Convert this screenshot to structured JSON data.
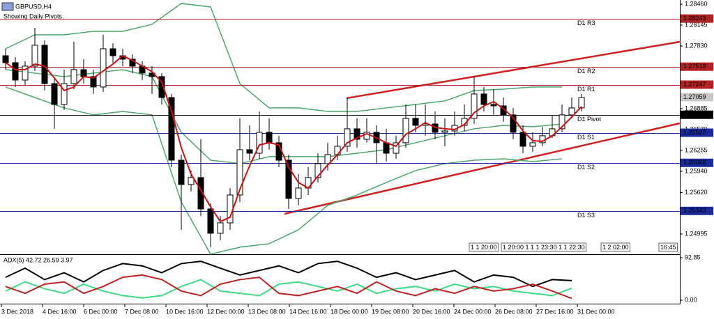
{
  "header": {
    "symbol": "GBPUSD,H4",
    "note": "Showing Daily Pivots."
  },
  "chart_data": [
    {
      "type": "candlestick",
      "ylim": [
        1.2469,
        1.28523
      ],
      "yticks": [
        {
          "value": 1.2846,
          "label": "1.28460"
        },
        1.28145,
        {
          "value": 1.2783,
          "label": "1.27830"
        },
        1.26885,
        {
          "value": 1.2657,
          "label": "1.26570"
        },
        1.26255,
        {
          "value": 1.2594,
          "label": "1.25940"
        },
        {
          "value": 1.2562,
          "label": "1.25620"
        },
        1.24995
      ],
      "open": [
        1.27683,
        1.27578,
        1.27316,
        1.27526,
        1.27841,
        1.27263,
        1.26948,
        1.27263,
        1.27473,
        1.27368,
        1.27211,
        1.27788,
        1.27683,
        1.27631,
        1.27526,
        1.27421,
        1.27368,
        1.27053,
        1.26108,
        1.25741,
        1.25846,
        1.25373,
        1.25006,
        1.25163,
        1.25583,
        1.26266,
        1.26213,
        1.26528,
        1.26371,
        1.26108,
        1.25531,
        1.25688,
        1.25846,
        1.26056,
        1.26192,
        1.26318,
        1.26581,
        1.26423,
        1.26528,
        1.26371,
        1.26213,
        1.26371,
        1.26738,
        1.26633,
        1.26654,
        1.26528,
        1.26549,
        1.26633,
        1.26738,
        1.27106,
        1.26948,
        1.26927,
        1.26791,
        1.26528,
        1.26318,
        1.26371,
        1.26476,
        1.26581,
        1.26791,
        1.26896
      ],
      "high": [
        1.27788,
        1.27662,
        1.27599,
        1.28103,
        1.27914,
        1.27347,
        1.27473,
        1.27893,
        1.27631,
        1.27473,
        1.27998,
        1.27872,
        1.27788,
        1.27704,
        1.27599,
        1.27526,
        1.27421,
        1.27106,
        1.26192,
        1.25951,
        1.26423,
        1.25457,
        1.25268,
        1.25688,
        1.26738,
        1.26633,
        1.26843,
        1.26738,
        1.26476,
        1.26192,
        1.25898,
        1.26003,
        1.26213,
        1.26371,
        1.26476,
        1.27053,
        1.26738,
        1.26738,
        1.26633,
        1.26581,
        1.26476,
        1.26948,
        1.26948,
        1.26948,
        1.26843,
        1.26738,
        1.26843,
        1.26948,
        1.27368,
        1.27211,
        1.27179,
        1.27053,
        1.26896,
        1.26633,
        1.26528,
        1.26612,
        1.26791,
        1.26948,
        1.27053,
        1.27106
      ],
      "low": [
        1.27473,
        1.27211,
        1.27242,
        1.27452,
        1.27158,
        1.26581,
        1.26864,
        1.27179,
        1.27263,
        1.27106,
        1.27137,
        1.27578,
        1.27526,
        1.27421,
        1.27316,
        1.27106,
        1.26948,
        1.26003,
        1.25058,
        1.25636,
        1.25268,
        1.24796,
        1.24901,
        1.25058,
        1.25478,
        1.26108,
        1.26129,
        1.26266,
        1.26003,
        1.25373,
        1.25426,
        1.25583,
        1.25772,
        1.25951,
        1.26108,
        1.26234,
        1.26297,
        1.26371,
        1.26056,
        1.26087,
        1.26129,
        1.26297,
        1.26528,
        1.26476,
        1.26423,
        1.26318,
        1.26476,
        1.26549,
        1.26654,
        1.26843,
        1.26791,
        1.26686,
        1.26423,
        1.26213,
        1.26234,
        1.26318,
        1.26444,
        1.26528,
        1.26738,
        1.26843
      ],
      "close": [
        1.27578,
        1.27316,
        1.27526,
        1.27841,
        1.27263,
        1.26948,
        1.27263,
        1.27473,
        1.27368,
        1.27211,
        1.27788,
        1.27683,
        1.27631,
        1.27526,
        1.27421,
        1.27368,
        1.27053,
        1.26108,
        1.25741,
        1.25846,
        1.25373,
        1.25006,
        1.25163,
        1.25583,
        1.26266,
        1.26213,
        1.26528,
        1.26371,
        1.26108,
        1.25531,
        1.25688,
        1.25846,
        1.26056,
        1.26192,
        1.26318,
        1.26581,
        1.26423,
        1.26528,
        1.26371,
        1.26213,
        1.26371,
        1.26738,
        1.26633,
        1.26654,
        1.26528,
        1.26549,
        1.26633,
        1.26738,
        1.27106,
        1.26948,
        1.26927,
        1.26791,
        1.26528,
        1.26318,
        1.26371,
        1.26476,
        1.26581,
        1.26791,
        1.26896,
        1.27053
      ],
      "ma": {
        "color": "#cc1010",
        "values": [
          1.27578,
          1.27473,
          1.27473,
          1.27557,
          1.27526,
          1.27347,
          1.27158,
          1.27211,
          1.27368,
          1.27347,
          1.27452,
          1.27557,
          1.27683,
          1.2761,
          1.27526,
          1.27442,
          1.27284,
          1.26843,
          1.26297,
          1.25898,
          1.25657,
          1.25405,
          1.25184,
          1.25247,
          1.25667,
          1.26024,
          1.26339,
          1.26371,
          1.26339,
          1.26003,
          1.25772,
          1.25688,
          1.25867,
          1.26035,
          1.26192,
          1.26371,
          1.26444,
          1.26507,
          1.26444,
          1.26371,
          1.26318,
          1.26497,
          1.26581,
          1.26675,
          1.26602,
          1.26581,
          1.2657,
          1.26644,
          1.26822,
          1.26927,
          1.2699,
          1.26885,
          1.26749,
          1.26549,
          1.26402,
          1.26392,
          1.26476,
          1.26612,
          1.26759,
          1.26917
        ]
      },
      "bands": {
        "color": "#4aa86a",
        "upper": [
          1.27788,
          1.27998,
          1.27998,
          1.28051,
          1.28051,
          1.28156,
          1.28471,
          1.28418,
          1.27263,
          1.26896,
          1.26896,
          1.26843,
          1.26843,
          1.26896,
          1.26948,
          1.27001,
          1.27158,
          1.27179,
          1.27211,
          1.27211
        ],
        "middle": [
          1.27473,
          1.27421,
          1.27368,
          1.27421,
          1.27473,
          1.27368,
          1.26528,
          1.26108,
          1.26056,
          1.26161,
          1.26161,
          1.26161,
          1.26213,
          1.26266,
          1.26371,
          1.26476,
          1.26581,
          1.26633,
          1.26612,
          1.26654
        ],
        "lower": [
          1.27211,
          1.27053,
          1.26896,
          1.26791,
          1.26843,
          1.26791,
          1.25478,
          1.24691,
          1.24796,
          1.24848,
          1.25058,
          1.25426,
          1.25583,
          1.25772,
          1.25951,
          1.26056,
          1.26108,
          1.26129,
          1.26087,
          1.26129
        ]
      },
      "pivots": [
        {
          "name": "D1 R3",
          "value": 1.28243,
          "color": "#b22222"
        },
        {
          "name": "D1 R2",
          "value": 1.27518,
          "color": "#b22222"
        },
        {
          "name": "D1 R1",
          "value": 1.27247,
          "color": "#b22222"
        },
        {
          "name": "D1 Pivot",
          "value": 1.26793,
          "color": "#000000"
        },
        {
          "name": "D1 S1",
          "value": 1.26522,
          "color": "#1a2a9a"
        },
        {
          "name": "D1 S2",
          "value": 1.26068,
          "color": "#1a2a9a"
        },
        {
          "name": "D1 S3",
          "value": 1.25343,
          "color": "#1a2a9a"
        }
      ],
      "current_price": {
        "value": 1.27059,
        "color": "#c8c8c8"
      }
    },
    {
      "type": "line",
      "title": "ADX(5) 42.72 26.59 3.97",
      "ylim": [
        0,
        92.85
      ],
      "yticks": [
        92.85,
        {
          "value": 0,
          "label": "0.00"
        }
      ],
      "series": [
        {
          "name": "ADX",
          "color": "#000000",
          "values": [
            50,
            70,
            45,
            60,
            40,
            65,
            80,
            75,
            60,
            80,
            85,
            70,
            55,
            65,
            75,
            60,
            80,
            85,
            70,
            50,
            60,
            45,
            55,
            65,
            40,
            55,
            50,
            30,
            45,
            42.72
          ]
        },
        {
          "name": "+DI",
          "color": "#3ddc84",
          "values": [
            20,
            40,
            25,
            15,
            35,
            20,
            10,
            5,
            10,
            30,
            45,
            20,
            15,
            10,
            35,
            40,
            30,
            20,
            35,
            15,
            25,
            30,
            20,
            35,
            25,
            30,
            20,
            15,
            10,
            26.59
          ]
        },
        {
          "name": "-DI",
          "color": "#c0201f",
          "values": [
            30,
            15,
            35,
            40,
            15,
            30,
            50,
            55,
            45,
            20,
            10,
            35,
            45,
            50,
            15,
            10,
            20,
            30,
            15,
            40,
            20,
            10,
            25,
            15,
            30,
            20,
            25,
            35,
            20,
            3.97
          ]
        }
      ]
    }
  ],
  "time_labels": [
    "3 Dec 2018",
    "4 Dec 16:00",
    "6 Dec 00:00",
    "7 Dec 08:00",
    "10 Dec 16:00",
    "12 Dec 00:00",
    "13 Dec 08:00",
    "14 Dec 16:00",
    "18 Dec 00:00",
    "19 Dec 08:00",
    "20 Dec 16:00",
    "24 Dec 00:00",
    "26 Dec 08:00",
    "27 Dec 16:00",
    "31 Dec 00:00"
  ],
  "time_markers": [
    "1 1 20:00",
    "1 20:00 1 1 1 23:30 1 1 22:30",
    "1 2 02:00",
    "16:45"
  ]
}
